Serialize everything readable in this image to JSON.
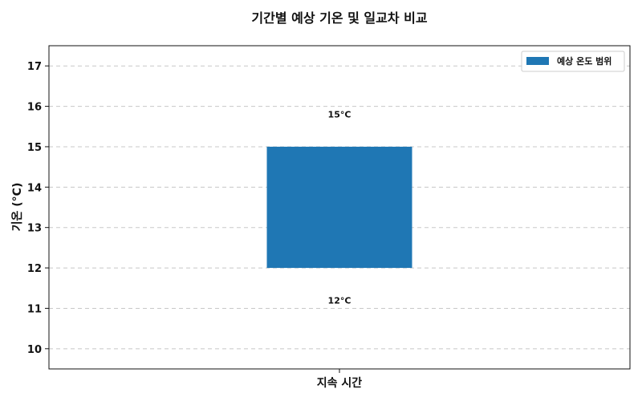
{
  "chart_data": {
    "type": "bar",
    "title": "기간별 예상 기온 및 일교차 비교",
    "xlabel": "지속 시간",
    "ylabel": "기온 (°C)",
    "categories": [
      ""
    ],
    "series": [
      {
        "name": "예상 온도 범위",
        "low": [
          12
        ],
        "high": [
          15
        ],
        "color": "#1f77b4"
      }
    ],
    "data_labels": [
      "15°C",
      "12°C"
    ],
    "ylim": [
      9.5,
      17.5
    ],
    "yticks": [
      10,
      11,
      12,
      13,
      14,
      15,
      16,
      17
    ],
    "grid": "horizontal-dashed",
    "legend_position": "top-right"
  }
}
